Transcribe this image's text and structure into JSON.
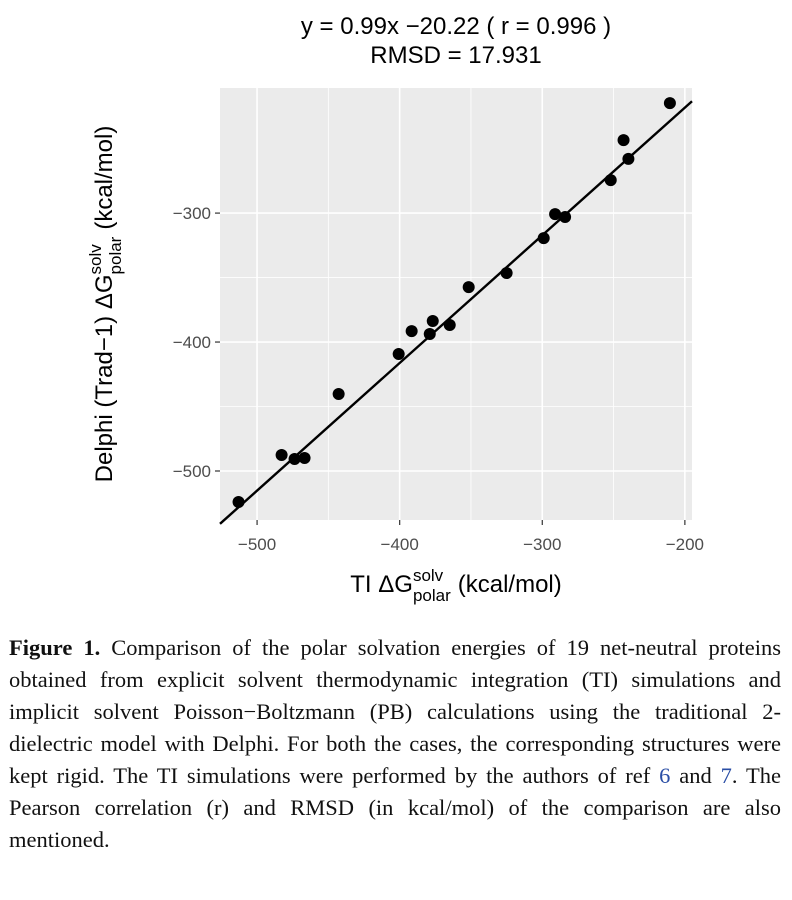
{
  "chart_data": {
    "type": "scatter",
    "title": "y = 0.99x −20.22 ( r = 0.996 )",
    "subtitle": "RMSD = 17.931",
    "fit_line": {
      "slope": 0.99,
      "intercept": -20.22
    },
    "x_label": {
      "text": "TI  ΔG",
      "sup": "solv",
      "sub": "polar",
      "unit": "(kcal/mol)"
    },
    "y_label": {
      "text": "Delphi (Trad−1)  ΔG",
      "sup": "solv",
      "sub": "polar",
      "unit": "(kcal/mol)"
    },
    "x": [
      -210.5,
      -243,
      -239.6,
      -252,
      -291,
      -284,
      -299,
      -325,
      -351.6,
      -391.6,
      -376.8,
      -364.9,
      -378.9,
      -400.7,
      -442.8,
      -482.8,
      -473.7,
      -466.7,
      -513
    ],
    "values": [
      -214.7,
      -243.4,
      -258,
      -274.4,
      -300.8,
      -303,
      -319.4,
      -346.5,
      -357.4,
      -391.5,
      -383.7,
      -386.8,
      -393.8,
      -409.3,
      -440.3,
      -487.6,
      -490.7,
      -489.9,
      -524
    ],
    "color": "#000000",
    "xlim": [
      -526,
      -195
    ],
    "ylim": [
      -538,
      -203
    ],
    "xticks": [
      {
        "value": -500,
        "label": "−500"
      },
      {
        "value": -400,
        "label": "−400"
      },
      {
        "value": -300,
        "label": "−300"
      },
      {
        "value": -200,
        "label": "−200"
      }
    ],
    "yticks": [
      {
        "value": -500,
        "label": "−500"
      },
      {
        "value": -400,
        "label": "−400"
      },
      {
        "value": -300,
        "label": "−300"
      }
    ],
    "grid": true
  },
  "caption": {
    "label": "Figure 1.",
    "text_1": "Comparison of the polar solvation energies of 19 net-neutral proteins obtained from explicit solvent thermodynamic integration (TI) simulations and implicit solvent Poisson−Boltzmann (PB) calculations using the traditional 2-dielectric model with Delphi. For both the cases, the corresponding structures were kept rigid. The TI simulations were performed by the authors of ref ",
    "ref_1": "6",
    "text_2": " and ",
    "ref_2": "7",
    "text_3": ". The Pearson correlation (r) and RMSD (in kcal/mol) of the comparison are also mentioned."
  }
}
